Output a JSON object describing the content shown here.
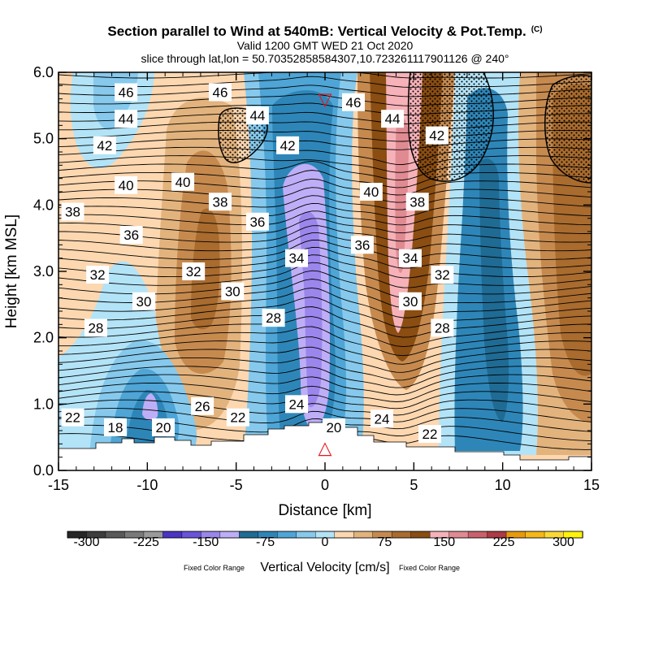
{
  "title": "Section parallel to Wind at 540mB: Vertical Velocity & Pot.Temp.",
  "title_mark": "(C)",
  "subtitle_valid": "Valid 1200 GMT WED 21 Oct 2020",
  "subtitle_slice": "slice through lat,lon = 50.70352858584307,10.723261117901126 @ 240°",
  "markers": {
    "top": "▽",
    "bottom": "△",
    "color": "#e8161b"
  },
  "colorbar": {
    "title": "Vertical Velocity [cm/s]",
    "note_left": "Fixed Color Range",
    "note_right": "Fixed Color Range",
    "tick_labels": [
      "-300",
      "-225",
      "-150",
      "-75",
      "0",
      "75",
      "150",
      "225",
      "300"
    ],
    "colors": [
      "#262626",
      "#3d3d3d",
      "#595959",
      "#7a7a7a",
      "#9a9a9a",
      "#4a34c4",
      "#6a52d9",
      "#9b86ec",
      "#beaef7",
      "#1f6b94",
      "#2e86b8",
      "#4ea5d6",
      "#86c9ec",
      "#b3e3f7",
      "#fcd7b0",
      "#e3b37d",
      "#c68a4f",
      "#a96b2e",
      "#8a4d12",
      "#f6b2b8",
      "#e08a92",
      "#c9626c",
      "#ad3a44",
      "#e69a0c",
      "#f5b81a",
      "#fcd836",
      "#fef20a"
    ]
  },
  "chart_data": {
    "type": "heatmap",
    "title": "Section parallel to Wind at 540mB: Vertical Velocity & Pot.Temp.",
    "xlabel": "Distance [km]",
    "ylabel": "Height [km MSL]",
    "xlim": [
      -15,
      15
    ],
    "ylim": [
      0,
      6
    ],
    "xticks": [
      -15,
      -10,
      -5,
      0,
      5,
      10,
      15
    ],
    "xtick_labels": [
      "-15",
      "-10",
      "-5",
      "0",
      "5",
      "10",
      "15"
    ],
    "yticks": [
      0,
      1,
      2,
      3,
      4,
      5,
      6
    ],
    "ytick_labels": [
      "0.0",
      "1.0",
      "2.0",
      "3.0",
      "4.0",
      "5.0",
      "6.0"
    ],
    "fill_variable": "Vertical Velocity [cm/s]",
    "fill_range": [
      -300,
      300
    ],
    "contour_variable": "Pot.Temp.",
    "marker_top": {
      "x": 0,
      "y": 5.6
    },
    "marker_bottom": {
      "x": 0,
      "y": 0.35
    },
    "velocity_features": [
      {
        "kind": "updraft",
        "x": -7.5,
        "y": 3.2,
        "peak": 100
      },
      {
        "kind": "updraft",
        "x": 4.0,
        "y": 3.5,
        "peak": 150
      },
      {
        "kind": "updraft",
        "x": 13.0,
        "y": 3.5,
        "peak": 100
      },
      {
        "kind": "downdraft",
        "x": -1.0,
        "y": 2.6,
        "peak": -140
      },
      {
        "kind": "downdraft",
        "x": -10.0,
        "y": 0.9,
        "peak": -120
      },
      {
        "kind": "downdraft",
        "x": 8.0,
        "y": 2.5,
        "peak": -80
      },
      {
        "kind": "downdraft",
        "x": -11.0,
        "y": 5.0,
        "peak": -20
      }
    ],
    "contour_labels": [
      {
        "text": "46",
        "x": -11.2,
        "y": 5.7
      },
      {
        "text": "46",
        "x": -5.9,
        "y": 5.7
      },
      {
        "text": "46",
        "x": 1.6,
        "y": 5.55
      },
      {
        "text": "44",
        "x": -11.2,
        "y": 5.3
      },
      {
        "text": "44",
        "x": -3.8,
        "y": 5.35
      },
      {
        "text": "44",
        "x": 3.8,
        "y": 5.3
      },
      {
        "text": "42",
        "x": -12.4,
        "y": 4.9
      },
      {
        "text": "42",
        "x": -2.1,
        "y": 4.9
      },
      {
        "text": "42",
        "x": 6.3,
        "y": 5.05
      },
      {
        "text": "40",
        "x": -11.2,
        "y": 4.3
      },
      {
        "text": "40",
        "x": -8.0,
        "y": 4.35
      },
      {
        "text": "40",
        "x": 2.6,
        "y": 4.2
      },
      {
        "text": "38",
        "x": -14.2,
        "y": 3.9
      },
      {
        "text": "38",
        "x": -5.9,
        "y": 4.05
      },
      {
        "text": "38",
        "x": 5.2,
        "y": 4.05
      },
      {
        "text": "36",
        "x": -10.9,
        "y": 3.55
      },
      {
        "text": "36",
        "x": -3.8,
        "y": 3.75
      },
      {
        "text": "36",
        "x": 2.1,
        "y": 3.4
      },
      {
        "text": "34",
        "x": -1.6,
        "y": 3.2
      },
      {
        "text": "34",
        "x": 4.8,
        "y": 3.2
      },
      {
        "text": "32",
        "x": -12.8,
        "y": 2.95
      },
      {
        "text": "32",
        "x": -7.4,
        "y": 3.0
      },
      {
        "text": "32",
        "x": 6.6,
        "y": 2.95
      },
      {
        "text": "30",
        "x": -10.2,
        "y": 2.55
      },
      {
        "text": "30",
        "x": -5.2,
        "y": 2.7
      },
      {
        "text": "30",
        "x": 4.8,
        "y": 2.55
      },
      {
        "text": "28",
        "x": -12.9,
        "y": 2.15
      },
      {
        "text": "28",
        "x": -2.9,
        "y": 2.3
      },
      {
        "text": "28",
        "x": 6.6,
        "y": 2.15
      },
      {
        "text": "26",
        "x": -6.9,
        "y": 0.97
      },
      {
        "text": "24",
        "x": -1.6,
        "y": 1.0
      },
      {
        "text": "24",
        "x": 3.2,
        "y": 0.78
      },
      {
        "text": "22",
        "x": -14.2,
        "y": 0.8
      },
      {
        "text": "22",
        "x": -4.9,
        "y": 0.8
      },
      {
        "text": "22",
        "x": 5.9,
        "y": 0.55
      },
      {
        "text": "20",
        "x": -9.1,
        "y": 0.65
      },
      {
        "text": "20",
        "x": 0.5,
        "y": 0.65
      },
      {
        "text": "18",
        "x": -11.8,
        "y": 0.65
      }
    ]
  }
}
